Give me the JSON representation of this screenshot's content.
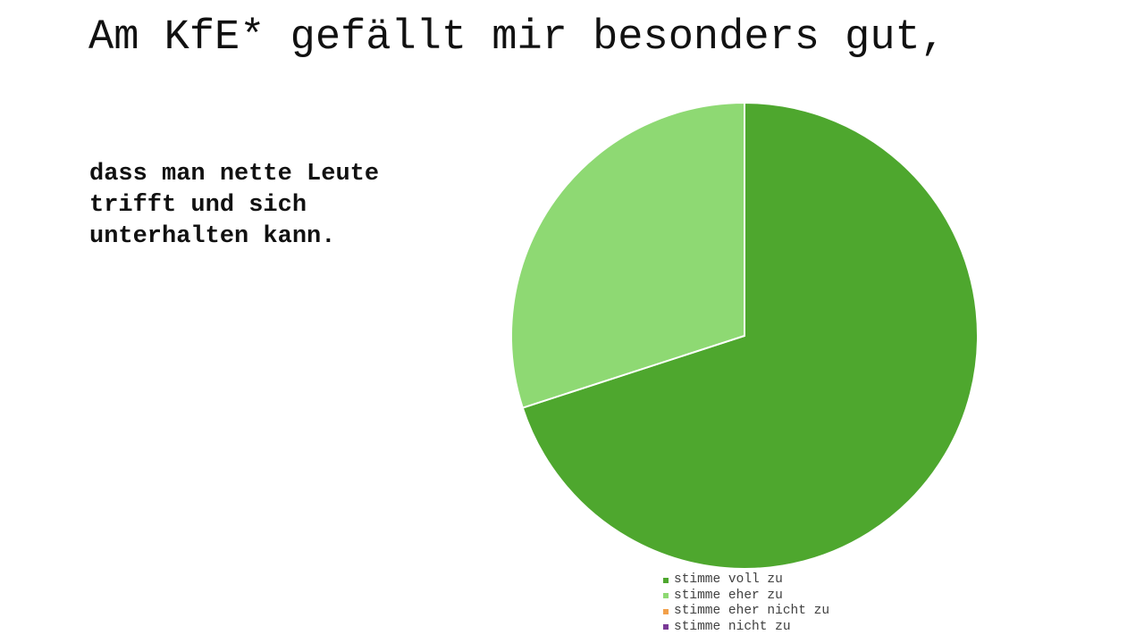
{
  "slide": {
    "title": "Am KfE* gefällt mir besonders gut,",
    "subtitle": "dass man nette Leute trifft und sich unterhalten kann."
  },
  "chart_data": {
    "type": "pie",
    "title": "",
    "start_angle_deg": 0,
    "direction": "clockwise",
    "legend_position": "bottom",
    "slices": [
      {
        "label": "stimme voll zu",
        "value": 70,
        "color": "#4ea72e"
      },
      {
        "label": "stimme eher zu",
        "value": 30,
        "color": "#8ed973"
      },
      {
        "label": "stimme eher nicht zu",
        "value": 0,
        "color": "#f2a04a"
      },
      {
        "label": "stimme nicht zu",
        "value": 0,
        "color": "#7a3a96"
      }
    ]
  }
}
